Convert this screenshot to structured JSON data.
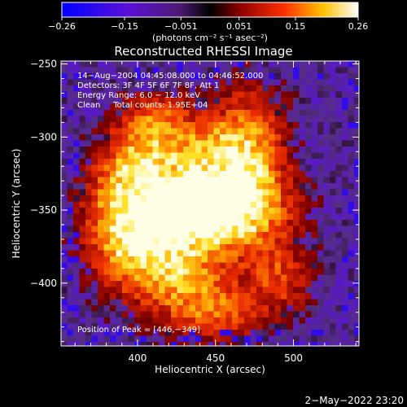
{
  "colorbar": {
    "tick_labels": [
      "−0.26",
      "−0.15",
      "−0.051",
      "0.051",
      "0.15",
      "0.26"
    ],
    "ticks": [
      -0.26,
      -0.15,
      -0.051,
      0.051,
      0.15,
      0.26
    ],
    "range": [
      -0.26,
      0.26
    ],
    "units": "(photons cm⁻² s⁻¹ asec⁻²)"
  },
  "chart_data": {
    "type": "heatmap",
    "title": "Reconstructed RHESSI Image",
    "xlabel": "Heliocentric X (arcsec)",
    "ylabel": "Heliocentric Y (arcsec)",
    "xlim": [
      351,
      542
    ],
    "ylim": [
      -443,
      -248
    ],
    "xticks": [
      400,
      450,
      500
    ],
    "xtick_labels": [
      "400",
      "450",
      "500"
    ],
    "yticks": [
      -250,
      -300,
      -350,
      -400
    ],
    "ytick_labels": [
      "−250",
      "−300",
      "−350",
      "−400"
    ],
    "annotations": [
      "14−Aug−2004 04:45:08.000 to 04:46:52.000",
      "Detectors: 3F 4F 5F 6F 7F 8F, Att 1",
      "Energy Range: 6.0 − 12.0 keV",
      "Clean     Total counts: 1.95E+04"
    ],
    "peak_label": "Position of Peak = [446,−349]",
    "peak": [
      446,
      -349
    ],
    "colormap": "hot-purple",
    "values_units": "photons cm^-2 s^-1 asec^-2"
  },
  "footer": {
    "timestamp": "2−May−2022 23:20"
  }
}
